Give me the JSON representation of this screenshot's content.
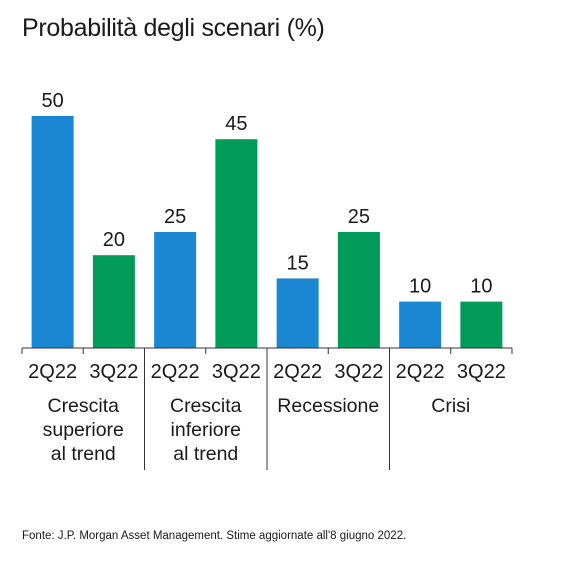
{
  "title": "Probabilità degli scenari (%)",
  "source": "Fonte: J.P. Morgan Asset Management. Stime aggiornate all'8 giugno 2022.",
  "colors": {
    "blue": "#1b87d3",
    "green": "#009b58",
    "axis": "#333333"
  },
  "chart_data": {
    "type": "bar",
    "title": "Probabilità degli scenari (%)",
    "ylim": [
      0,
      50
    ],
    "grid": false,
    "groups": [
      {
        "label_lines": [
          "Crescita",
          "superiore",
          "al trend"
        ],
        "bars": [
          {
            "category": "2Q22",
            "value": 50,
            "color": "#1b87d3"
          },
          {
            "category": "3Q22",
            "value": 20,
            "color": "#009b58"
          }
        ]
      },
      {
        "label_lines": [
          "Crescita",
          "inferiore",
          "al trend"
        ],
        "bars": [
          {
            "category": "2Q22",
            "value": 25,
            "color": "#1b87d3"
          },
          {
            "category": "3Q22",
            "value": 45,
            "color": "#009b58"
          }
        ]
      },
      {
        "label_lines": [
          "Recessione"
        ],
        "bars": [
          {
            "category": "2Q22",
            "value": 15,
            "color": "#1b87d3"
          },
          {
            "category": "3Q22",
            "value": 25,
            "color": "#009b58"
          }
        ]
      },
      {
        "label_lines": [
          "Crisi"
        ],
        "bars": [
          {
            "category": "2Q22",
            "value": 10,
            "color": "#1b87d3"
          },
          {
            "category": "3Q22",
            "value": 10,
            "color": "#009b58"
          }
        ]
      }
    ]
  }
}
